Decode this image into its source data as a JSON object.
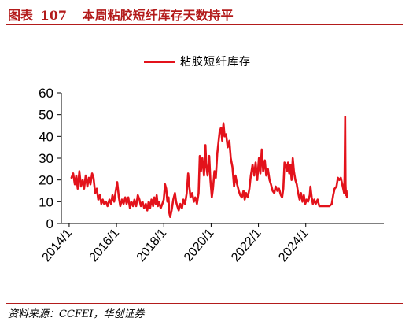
{
  "header": {
    "label": "图表",
    "number": "107",
    "title": "本周粘胶短纤库存天数持平"
  },
  "source": "资料来源：CCFEI，华创证券",
  "chart_data": {
    "type": "line",
    "title": "本周粘胶短纤库存天数持平",
    "ylim": [
      0,
      60
    ],
    "yticks": [
      0,
      10,
      20,
      30,
      40,
      50,
      60
    ],
    "xlim": [
      2013.67,
      2027.3
    ],
    "xticks": [
      {
        "v": 2014.0,
        "label": "2014/1"
      },
      {
        "v": 2016.0,
        "label": "2016/1"
      },
      {
        "v": 2018.0,
        "label": "2018/1"
      },
      {
        "v": 2020.0,
        "label": "2020/1"
      },
      {
        "v": 2022.0,
        "label": "2022/1"
      },
      {
        "v": 2024.0,
        "label": "2024/1"
      }
    ],
    "grid": false,
    "legend_position": "top-center",
    "series": [
      {
        "name": "粘胶短纤库存",
        "color": "#e3121b",
        "points": [
          [
            2014.1,
            21
          ],
          [
            2014.17,
            23
          ],
          [
            2014.24,
            18
          ],
          [
            2014.3,
            22
          ],
          [
            2014.36,
            16
          ],
          [
            2014.43,
            24
          ],
          [
            2014.5,
            17
          ],
          [
            2014.57,
            20
          ],
          [
            2014.63,
            16
          ],
          [
            2014.7,
            22
          ],
          [
            2014.77,
            17
          ],
          [
            2014.83,
            21
          ],
          [
            2014.9,
            18
          ],
          [
            2014.97,
            23
          ],
          [
            2015.03,
            21
          ],
          [
            2015.1,
            14
          ],
          [
            2015.17,
            16
          ],
          [
            2015.23,
            11
          ],
          [
            2015.3,
            13
          ],
          [
            2015.36,
            9
          ],
          [
            2015.42,
            11
          ],
          [
            2015.48,
            9
          ],
          [
            2015.55,
            10
          ],
          [
            2015.62,
            8
          ],
          [
            2015.7,
            11
          ],
          [
            2015.77,
            9
          ],
          [
            2015.83,
            13
          ],
          [
            2015.9,
            10
          ],
          [
            2015.97,
            15
          ],
          [
            2016.03,
            19
          ],
          [
            2016.1,
            12
          ],
          [
            2016.16,
            8
          ],
          [
            2016.23,
            11
          ],
          [
            2016.3,
            9
          ],
          [
            2016.37,
            12
          ],
          [
            2016.43,
            9
          ],
          [
            2016.5,
            12
          ],
          [
            2016.57,
            7
          ],
          [
            2016.63,
            10
          ],
          [
            2016.7,
            8
          ],
          [
            2016.76,
            11
          ],
          [
            2016.83,
            8
          ],
          [
            2016.9,
            13
          ],
          [
            2016.97,
            11
          ],
          [
            2017.03,
            8
          ],
          [
            2017.1,
            10
          ],
          [
            2017.17,
            7
          ],
          [
            2017.24,
            9
          ],
          [
            2017.3,
            6
          ],
          [
            2017.36,
            10
          ],
          [
            2017.42,
            7
          ],
          [
            2017.48,
            11
          ],
          [
            2017.55,
            8
          ],
          [
            2017.6,
            12
          ],
          [
            2017.66,
            9
          ],
          [
            2017.7,
            13
          ],
          [
            2017.75,
            8
          ],
          [
            2017.8,
            10
          ],
          [
            2017.87,
            7
          ],
          [
            2017.94,
            9
          ],
          [
            2018.0,
            11
          ],
          [
            2018.05,
            18
          ],
          [
            2018.1,
            16
          ],
          [
            2018.15,
            10
          ],
          [
            2018.2,
            12
          ],
          [
            2018.23,
            5
          ],
          [
            2018.27,
            3
          ],
          [
            2018.33,
            6
          ],
          [
            2018.4,
            11
          ],
          [
            2018.47,
            14
          ],
          [
            2018.52,
            10
          ],
          [
            2018.57,
            8
          ],
          [
            2018.63,
            6
          ],
          [
            2018.7,
            9
          ],
          [
            2018.77,
            7
          ],
          [
            2018.83,
            11
          ],
          [
            2018.9,
            9
          ],
          [
            2018.97,
            14
          ],
          [
            2019.03,
            23
          ],
          [
            2019.08,
            17
          ],
          [
            2019.13,
            12
          ],
          [
            2019.2,
            14
          ],
          [
            2019.27,
            10
          ],
          [
            2019.33,
            12
          ],
          [
            2019.4,
            9
          ],
          [
            2019.47,
            14
          ],
          [
            2019.52,
            31
          ],
          [
            2019.57,
            24
          ],
          [
            2019.63,
            30
          ],
          [
            2019.7,
            22
          ],
          [
            2019.76,
            36
          ],
          [
            2019.8,
            26
          ],
          [
            2019.85,
            22
          ],
          [
            2019.92,
            31
          ],
          [
            2019.97,
            20
          ],
          [
            2020.03,
            12
          ],
          [
            2020.08,
            16
          ],
          [
            2020.14,
            24
          ],
          [
            2020.2,
            21
          ],
          [
            2020.26,
            32
          ],
          [
            2020.31,
            37
          ],
          [
            2020.36,
            42
          ],
          [
            2020.42,
            44
          ],
          [
            2020.47,
            38
          ],
          [
            2020.52,
            46
          ],
          [
            2020.57,
            40
          ],
          [
            2020.63,
            41
          ],
          [
            2020.7,
            35
          ],
          [
            2020.77,
            38
          ],
          [
            2020.83,
            30
          ],
          [
            2020.9,
            26
          ],
          [
            2020.97,
            17
          ],
          [
            2021.03,
            22
          ],
          [
            2021.1,
            18
          ],
          [
            2021.17,
            15
          ],
          [
            2021.23,
            13
          ],
          [
            2021.3,
            12
          ],
          [
            2021.37,
            15
          ],
          [
            2021.42,
            11
          ],
          [
            2021.48,
            14
          ],
          [
            2021.55,
            12
          ],
          [
            2021.62,
            16
          ],
          [
            2021.68,
            22
          ],
          [
            2021.75,
            27
          ],
          [
            2021.82,
            22
          ],
          [
            2021.88,
            28
          ],
          [
            2021.95,
            20
          ],
          [
            2022.02,
            30
          ],
          [
            2022.08,
            23
          ],
          [
            2022.14,
            34
          ],
          [
            2022.2,
            24
          ],
          [
            2022.27,
            29
          ],
          [
            2022.33,
            22
          ],
          [
            2022.4,
            25
          ],
          [
            2022.47,
            20
          ],
          [
            2022.53,
            18
          ],
          [
            2022.6,
            15
          ],
          [
            2022.67,
            14
          ],
          [
            2022.73,
            17
          ],
          [
            2022.8,
            15
          ],
          [
            2022.87,
            16
          ],
          [
            2022.95,
            13
          ],
          [
            2023.0,
            12
          ],
          [
            2023.05,
            16
          ],
          [
            2023.1,
            28
          ],
          [
            2023.15,
            27
          ],
          [
            2023.2,
            24
          ],
          [
            2023.25,
            28
          ],
          [
            2023.3,
            23
          ],
          [
            2023.35,
            27
          ],
          [
            2023.4,
            20
          ],
          [
            2023.45,
            30
          ],
          [
            2023.5,
            24
          ],
          [
            2023.56,
            20
          ],
          [
            2023.62,
            18
          ],
          [
            2023.68,
            14
          ],
          [
            2023.74,
            11
          ],
          [
            2023.8,
            14
          ],
          [
            2023.86,
            10
          ],
          [
            2023.92,
            13
          ],
          [
            2023.98,
            9
          ],
          [
            2024.04,
            11
          ],
          [
            2024.1,
            10
          ],
          [
            2024.17,
            13
          ],
          [
            2024.2,
            17
          ],
          [
            2024.25,
            12
          ],
          [
            2024.3,
            9
          ],
          [
            2024.36,
            11
          ],
          [
            2024.42,
            9
          ],
          [
            2024.5,
            11
          ],
          [
            2024.57,
            8
          ],
          [
            2024.7,
            8
          ],
          [
            2024.85,
            8
          ],
          [
            2025.0,
            8
          ],
          [
            2025.1,
            9
          ],
          [
            2025.16,
            13
          ],
          [
            2025.22,
            16
          ],
          [
            2025.3,
            17
          ],
          [
            2025.36,
            21
          ],
          [
            2025.42,
            20
          ],
          [
            2025.48,
            21
          ],
          [
            2025.54,
            18
          ],
          [
            2025.58,
            16
          ],
          [
            2025.62,
            14
          ],
          [
            2025.64,
            22
          ],
          [
            2025.665,
            49
          ],
          [
            2025.68,
            18
          ],
          [
            2025.7,
            13
          ],
          [
            2025.72,
            15
          ],
          [
            2025.74,
            12
          ]
        ]
      }
    ]
  }
}
